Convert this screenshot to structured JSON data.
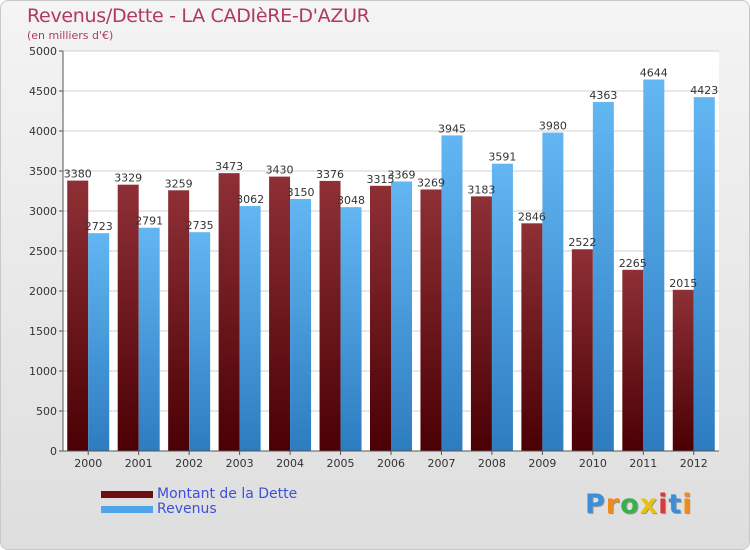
{
  "title": "Revenus/Dette - LA CADIèRE-D'AZUR",
  "subtitle": "(en milliers d'€)",
  "chart_data": {
    "type": "bar",
    "categories": [
      "2000",
      "2001",
      "2002",
      "2003",
      "2004",
      "2005",
      "2006",
      "2007",
      "2008",
      "2009",
      "2010",
      "2011",
      "2012"
    ],
    "series": [
      {
        "name": "Montant de la Dette",
        "values": [
          3380,
          3329,
          3259,
          3473,
          3430,
          3376,
          3315,
          3269,
          3183,
          2846,
          2522,
          2265,
          2015
        ],
        "color": "#6b0f12"
      },
      {
        "name": "Revenus",
        "values": [
          2723,
          2791,
          2735,
          3062,
          3150,
          3048,
          3369,
          3945,
          3591,
          3980,
          4363,
          4644,
          4423
        ],
        "color": "#4ea6e8"
      }
    ],
    "ylim": [
      0,
      5000
    ],
    "yticks": [
      0,
      500,
      1000,
      1500,
      2000,
      2500,
      3000,
      3500,
      4000,
      4500,
      5000
    ],
    "grid": true,
    "legend_position": "bottom-left"
  },
  "logo": {
    "letters": [
      "P",
      "r",
      "o",
      "x",
      "i",
      "t",
      "i"
    ],
    "colors": [
      "#3a8fd8",
      "#f08a1c",
      "#3ab04a",
      "#e8c010",
      "#d83a3a",
      "#3a8fd8",
      "#f08a1c"
    ]
  }
}
